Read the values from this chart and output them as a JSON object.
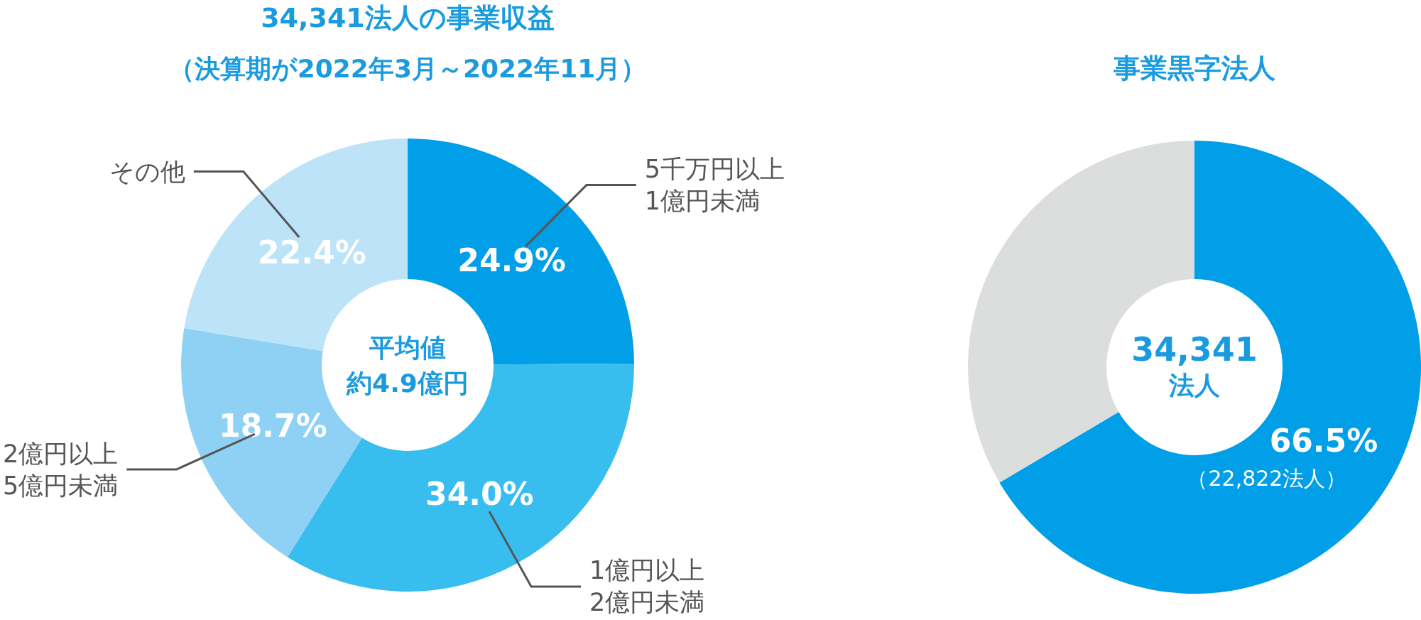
{
  "chart_data": [
    {
      "type": "donut",
      "title": "34,341法人の事業収益",
      "subtitle": "（決算期が2022年3月～2022年11月）",
      "categories": [
        "5千万円以上\n1億円未満",
        "1億円以上\n2億円未満",
        "2億円以上\n5億円未満",
        "その他"
      ],
      "values": [
        24.9,
        34.0,
        18.7,
        22.4
      ],
      "colors": [
        "#009fe8",
        "#38bdef",
        "#8ed1f4",
        "#bde3f8"
      ],
      "value_labels": [
        "24.9%",
        "34.0%",
        "18.7%",
        "22.4%"
      ],
      "annotations": [
        "平均値",
        "約4.9億円"
      ]
    },
    {
      "type": "donut",
      "title": "事業黒字法人",
      "categories": [
        null,
        null
      ],
      "values": [
        66.5,
        33.5
      ],
      "colors": [
        "#009fe8",
        "#dcdddd"
      ],
      "value_labels": [
        "66.5%\n（22,822法人）",
        null
      ],
      "annotations": [
        "34,341",
        "法人"
      ]
    }
  ]
}
